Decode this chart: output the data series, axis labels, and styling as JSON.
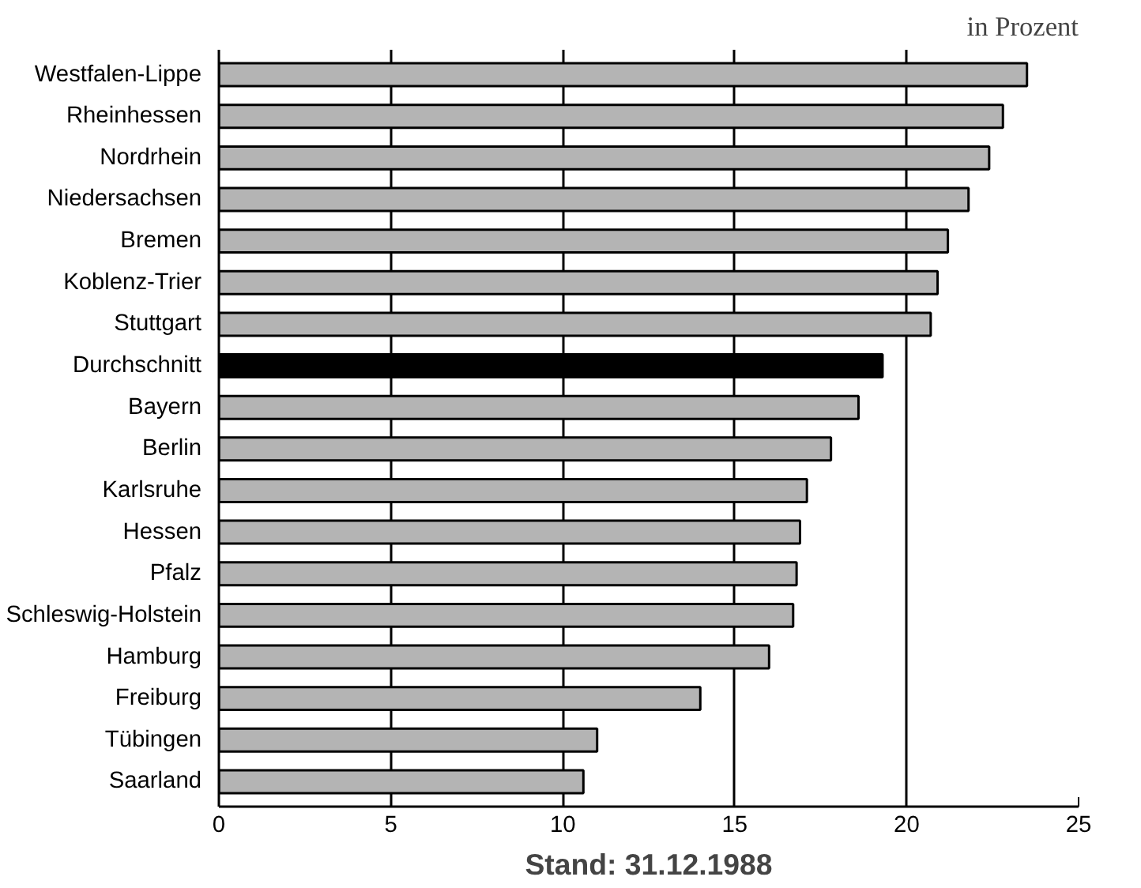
{
  "chart_data": {
    "type": "bar",
    "orientation": "horizontal",
    "categories": [
      "Westfalen-Lippe",
      "Rheinhessen",
      "Nordrhein",
      "Niedersachsen",
      "Bremen",
      "Koblenz-Trier",
      "Stuttgart",
      "Durchschnitt",
      "Bayern",
      "Berlin",
      "Karlsruhe",
      "Hessen",
      "Pfalz",
      "Schleswig-Holstein",
      "Hamburg",
      "Freiburg",
      "Tübingen",
      "Saarland"
    ],
    "values": [
      23.5,
      22.8,
      22.4,
      21.8,
      21.2,
      20.9,
      20.7,
      19.3,
      18.6,
      17.8,
      17.1,
      16.9,
      16.8,
      16.7,
      16.0,
      14.0,
      11.0,
      10.6
    ],
    "colors": [
      "#b4b4b4",
      "#b4b4b4",
      "#b4b4b4",
      "#b4b4b4",
      "#b4b4b4",
      "#b4b4b4",
      "#b4b4b4",
      "#000000",
      "#b4b4b4",
      "#b4b4b4",
      "#b4b4b4",
      "#b4b4b4",
      "#b4b4b4",
      "#b4b4b4",
      "#b4b4b4",
      "#b4b4b4",
      "#b4b4b4",
      "#b4b4b4"
    ],
    "xlim": [
      0,
      25
    ],
    "xticks": [
      0,
      5,
      10,
      15,
      20,
      25
    ],
    "grid": "x",
    "annotations": [
      "in Prozent",
      "Stand: 31.12.1988"
    ]
  }
}
